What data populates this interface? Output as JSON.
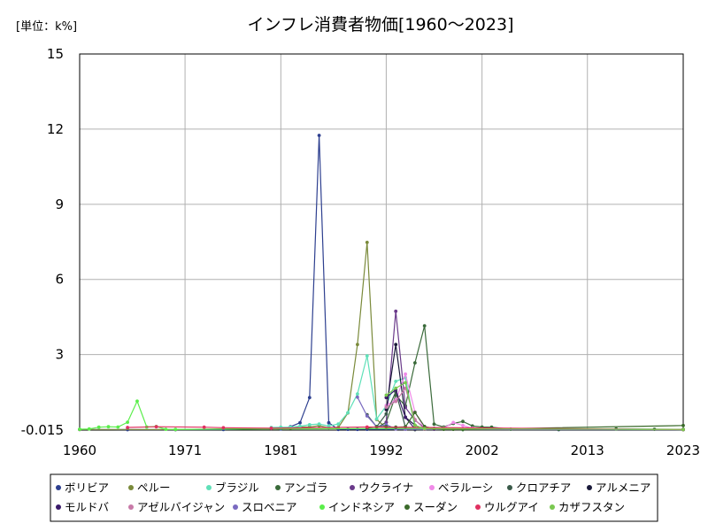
{
  "chart_data": {
    "type": "line",
    "title": "インフレ消費者物価[1960～2023]",
    "unit_label": "[単位：k%]",
    "xlabel": "",
    "ylabel": "",
    "xlim": [
      1960,
      2023
    ],
    "ylim": [
      -0.015,
      15
    ],
    "x_ticks": [
      1960,
      1971,
      1981,
      1992,
      2002,
      2013,
      2023
    ],
    "y_ticks": [
      -0.015,
      3,
      6,
      9,
      12,
      15
    ],
    "y_tick_labels": [
      "-0.015",
      "3",
      "6",
      "9",
      "12",
      "15"
    ],
    "grid": true,
    "legend_position": "bottom",
    "series": [
      {
        "name": "ボリビア",
        "color": "#2d3f8f",
        "x": [
          1960,
          1965,
          1970,
          1975,
          1980,
          1981,
          1982,
          1983,
          1984,
          1985,
          1986,
          1987,
          1988,
          1989,
          1990,
          1995,
          2000,
          2010,
          2023
        ],
        "values": [
          0.01,
          0.003,
          0.004,
          0.006,
          0.047,
          0.032,
          0.12,
          0.28,
          1.28,
          11.75,
          0.28,
          0.015,
          0.016,
          0.015,
          0.018,
          0.01,
          0.005,
          0.002,
          0.003
        ]
      },
      {
        "name": "ペルー",
        "color": "#7a8a3a",
        "x": [
          1960,
          1970,
          1980,
          1981,
          1982,
          1983,
          1984,
          1985,
          1986,
          1987,
          1988,
          1989,
          1990,
          1991,
          1992,
          1993,
          1994,
          1995,
          2000,
          2023
        ],
        "values": [
          0.01,
          0.005,
          0.06,
          0.075,
          0.065,
          0.11,
          0.11,
          0.16,
          0.08,
          0.09,
          0.67,
          3.4,
          7.48,
          0.41,
          0.074,
          0.05,
          0.024,
          0.011,
          0.004,
          0.006
        ]
      },
      {
        "name": "ブラジル",
        "color": "#5fe0b8",
        "x": [
          1980,
          1981,
          1982,
          1983,
          1984,
          1985,
          1986,
          1987,
          1988,
          1989,
          1990,
          1991,
          1992,
          1993,
          1994,
          1995,
          1996,
          2000,
          2023
        ],
        "values": [
          0.09,
          0.1,
          0.1,
          0.14,
          0.2,
          0.23,
          0.15,
          0.23,
          0.68,
          1.43,
          2.95,
          0.43,
          0.95,
          1.93,
          2.08,
          0.07,
          0.016,
          0.007,
          0.005
        ]
      },
      {
        "name": "アンゴラ",
        "color": "#3a6a3a",
        "x": [
          1991,
          1992,
          1993,
          1994,
          1995,
          1996,
          1997,
          1998,
          1999,
          2000,
          2001,
          2002,
          2003,
          2005,
          2010,
          2016,
          2020,
          2023
        ],
        "values": [
          0.08,
          0.3,
          1.38,
          0.95,
          2.67,
          4.15,
          0.22,
          0.11,
          0.25,
          0.33,
          0.15,
          0.11,
          0.1,
          0.02,
          0.014,
          0.03,
          0.02,
          0.013
        ]
      },
      {
        "name": "ウクライナ",
        "color": "#6a3a8a",
        "x": [
          1992,
          1993,
          1994,
          1995,
          1996,
          1997,
          2000,
          2023
        ],
        "values": [
          0.3,
          4.73,
          0.89,
          0.38,
          0.08,
          0.016,
          0.03,
          0.013
        ]
      },
      {
        "name": "ベラルーシ",
        "color": "#f08ae8",
        "x": [
          1992,
          1993,
          1994,
          1995,
          1996,
          1997,
          1998,
          1999,
          2000,
          2001,
          2023
        ],
        "values": [
          0.97,
          1.19,
          2.22,
          0.71,
          0.05,
          0.06,
          0.07,
          0.29,
          0.17,
          0.06,
          0.005
        ]
      },
      {
        "name": "クロアチア",
        "color": "#3a5a4a",
        "x": [
          1990,
          1991,
          1992,
          1993,
          1994,
          1995,
          2023
        ],
        "values": [
          0.6,
          0.12,
          0.63,
          1.52,
          0.1,
          0.002,
          0.008
        ]
      },
      {
        "name": "アルメニア",
        "color": "#1a1a3a",
        "x": [
          1992,
          1993,
          1994,
          1995,
          1996,
          2023
        ],
        "values": [
          0.8,
          3.4,
          0.5,
          0.18,
          0.02,
          0.002
        ]
      },
      {
        "name": "モルドバ",
        "color": "#3a1a6a",
        "x": [
          1992,
          1993,
          1994,
          1995,
          1996,
          2023
        ],
        "values": [
          1.28,
          1.6,
          0.49,
          0.03,
          0.02,
          0.014
        ]
      },
      {
        "name": "アゼルバイジャン",
        "color": "#c87aa8",
        "x": [
          1992,
          1993,
          1994,
          1995,
          1996,
          2023
        ],
        "values": [
          0.9,
          1.13,
          1.66,
          0.41,
          0.02,
          0.009
        ]
      },
      {
        "name": "スロベニア",
        "color": "#7a6ac0",
        "x": [
          1989,
          1990,
          1991,
          1992,
          1993,
          1994,
          2023
        ],
        "values": [
          1.3,
          0.55,
          0.12,
          0.2,
          0.03,
          0.02,
          0.004
        ]
      },
      {
        "name": "インドネシア",
        "color": "#5aee4a",
        "x": [
          1960,
          1961,
          1962,
          1963,
          1964,
          1965,
          1966,
          1967,
          1968,
          1969,
          1970,
          1998,
          2023
        ],
        "values": [
          0.02,
          0.03,
          0.1,
          0.12,
          0.11,
          0.3,
          1.14,
          0.11,
          0.13,
          0.016,
          0.012,
          0.06,
          0.004
        ]
      },
      {
        "name": "スーダン",
        "color": "#3a6a2a",
        "x": [
          1990,
          1991,
          1992,
          1993,
          1994,
          1995,
          1996,
          1997,
          1998,
          1999,
          2000,
          2023
        ],
        "values": [
          0.07,
          0.12,
          0.12,
          0.1,
          0.12,
          0.69,
          0.13,
          0.05,
          0.017,
          0.016,
          0.008,
          0.17
        ]
      },
      {
        "name": "ウルグアイ",
        "color": "#e03060",
        "x": [
          1965,
          1968,
          1973,
          1975,
          1980,
          1990,
          2023
        ],
        "values": [
          0.09,
          0.12,
          0.1,
          0.08,
          0.06,
          0.11,
          0.006
        ]
      },
      {
        "name": "カザフスタン",
        "color": "#7ac850",
        "x": [
          1992,
          1993,
          1994,
          1995,
          1996,
          2023
        ],
        "values": [
          1.38,
          1.66,
          1.88,
          0.18,
          0.04,
          0.015
        ]
      }
    ]
  }
}
